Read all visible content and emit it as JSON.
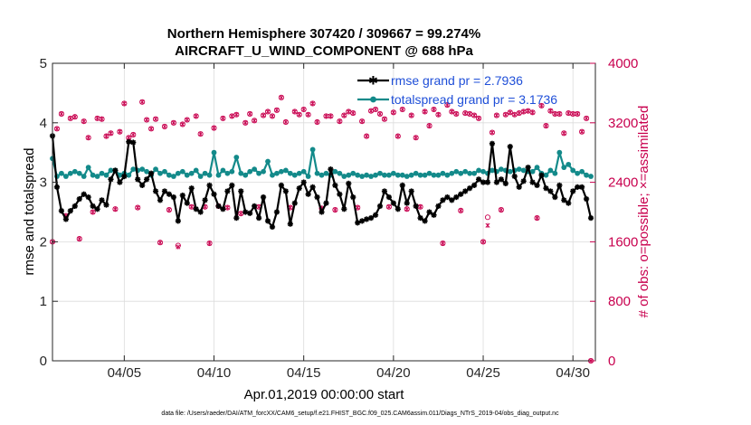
{
  "chart_data": {
    "type": "line",
    "title": "Northern Hemisphere 307420 / 309667 = 99.274%",
    "subtitle": "AIRCRAFT_U_WIND_COMPONENT @ 688 hPa",
    "xlabel": "Apr.01,2019 00:00:00 start",
    "ylabel": "rmse and totalspread",
    "y2label": "# of obs: o=possible; ×=assimilated",
    "footer": "data file: /Users/raeder/DAI/ATM_forcXX/CAM6_setup/f.e21.FHIST_BGC.f09_025.CAM6assim.011/Diags_NTrS_2019-04/obs_diag_output.nc",
    "xlim": [
      1,
      31.25
    ],
    "ylim": [
      0,
      5
    ],
    "y2lim": [
      0,
      4000
    ],
    "x_ticks": [
      5,
      10,
      15,
      20,
      25,
      30
    ],
    "x_tick_labels": [
      "04/05",
      "04/10",
      "04/15",
      "04/20",
      "04/25",
      "04/30"
    ],
    "y_ticks": [
      "0",
      "1",
      "2",
      "3",
      "4",
      "5"
    ],
    "y2_ticks": [
      "0",
      "800",
      "1600",
      "2400",
      "3200",
      "4000"
    ],
    "legend": [
      "rmse grand pr = 2.7936",
      "totalspread grand pr = 3.1736"
    ],
    "colors": {
      "rmse": "#000000",
      "spread": "#138a8a",
      "obs": "#c8004e",
      "legend_text": "#1f4fd8"
    },
    "x": [
      1.0,
      1.25,
      1.5,
      1.75,
      2.0,
      2.25,
      2.5,
      2.75,
      3.0,
      3.25,
      3.5,
      3.75,
      4.0,
      4.25,
      4.5,
      4.75,
      5.0,
      5.25,
      5.5,
      5.75,
      6.0,
      6.25,
      6.5,
      6.75,
      7.0,
      7.25,
      7.5,
      7.75,
      8.0,
      8.25,
      8.5,
      8.75,
      9.0,
      9.25,
      9.5,
      9.75,
      10.0,
      10.25,
      10.5,
      10.75,
      11.0,
      11.25,
      11.5,
      11.75,
      12.0,
      12.25,
      12.5,
      12.75,
      13.0,
      13.25,
      13.5,
      13.75,
      14.0,
      14.25,
      14.5,
      14.75,
      15.0,
      15.25,
      15.5,
      15.75,
      16.0,
      16.25,
      16.5,
      16.75,
      17.0,
      17.25,
      17.5,
      17.75,
      18.0,
      18.25,
      18.5,
      18.75,
      19.0,
      19.25,
      19.5,
      19.75,
      20.0,
      20.25,
      20.5,
      20.75,
      21.0,
      21.25,
      21.5,
      21.75,
      22.0,
      22.25,
      22.5,
      22.75,
      23.0,
      23.25,
      23.5,
      23.75,
      24.0,
      24.25,
      24.5,
      24.75,
      25.0,
      25.25,
      25.5,
      25.75,
      26.0,
      26.25,
      26.5,
      26.75,
      27.0,
      27.25,
      27.5,
      27.75,
      28.0,
      28.25,
      28.5,
      28.75,
      29.0,
      29.25,
      29.5,
      29.75,
      30.0,
      30.25,
      30.5,
      30.75,
      31.0
    ],
    "series": [
      {
        "name": "rmse",
        "values": [
          3.78,
          2.92,
          2.52,
          2.38,
          2.52,
          2.6,
          2.72,
          2.8,
          2.75,
          2.6,
          2.55,
          2.7,
          2.62,
          3.05,
          3.2,
          3.0,
          3.1,
          3.68,
          3.67,
          3.05,
          2.95,
          3.05,
          3.15,
          2.85,
          2.7,
          2.85,
          2.8,
          2.75,
          2.35,
          2.78,
          2.65,
          2.9,
          2.55,
          2.5,
          2.7,
          2.95,
          2.8,
          2.6,
          2.55,
          2.85,
          2.95,
          2.4,
          2.85,
          2.5,
          2.48,
          2.6,
          2.4,
          2.75,
          2.35,
          2.25,
          2.5,
          2.95,
          2.85,
          2.3,
          2.65,
          2.9,
          3.0,
          2.8,
          2.92,
          2.75,
          2.5,
          2.65,
          3.22,
          2.95,
          2.8,
          2.55,
          2.98,
          2.75,
          2.32,
          2.35,
          2.38,
          2.4,
          2.45,
          2.6,
          2.85,
          2.75,
          2.65,
          2.55,
          2.95,
          2.65,
          2.85,
          2.6,
          2.4,
          2.35,
          2.5,
          2.45,
          2.6,
          2.7,
          2.75,
          2.7,
          2.75,
          2.8,
          2.85,
          2.9,
          2.95,
          3.05,
          3.0,
          3.0,
          3.65,
          3.0,
          3.05,
          2.98,
          3.6,
          3.1,
          2.92,
          3.02,
          3.25,
          3.0,
          2.95,
          3.12,
          2.9,
          2.85,
          2.75,
          2.95,
          2.7,
          2.65,
          2.85,
          2.92,
          2.92,
          2.72,
          2.4
        ]
      },
      {
        "name": "totalspread",
        "values": [
          3.4,
          3.1,
          3.15,
          3.1,
          3.15,
          3.18,
          3.15,
          3.1,
          3.25,
          3.12,
          3.1,
          3.15,
          3.12,
          3.2,
          3.2,
          3.12,
          3.15,
          3.12,
          3.22,
          3.2,
          3.22,
          3.18,
          3.12,
          3.22,
          3.15,
          3.18,
          3.12,
          3.1,
          3.15,
          3.18,
          3.12,
          3.15,
          3.2,
          3.1,
          3.15,
          3.12,
          3.5,
          3.12,
          3.2,
          3.15,
          3.18,
          3.42,
          3.15,
          3.12,
          3.18,
          3.22,
          3.15,
          3.18,
          3.35,
          3.12,
          3.15,
          3.18,
          3.2,
          3.15,
          3.12,
          3.15,
          3.18,
          3.1,
          3.55,
          3.15,
          3.12,
          3.15,
          3.12,
          3.18,
          3.15,
          3.1,
          3.12,
          3.15,
          3.12,
          3.1,
          3.12,
          3.1,
          3.12,
          3.15,
          3.12,
          3.12,
          3.15,
          3.12,
          3.12,
          3.1,
          3.12,
          3.15,
          3.12,
          3.12,
          3.15,
          3.12,
          3.12,
          3.15,
          3.12,
          3.15,
          3.18,
          3.15,
          3.18,
          3.15,
          3.15,
          3.2,
          3.18,
          3.15,
          3.2,
          3.18,
          3.22,
          3.2,
          3.18,
          3.2,
          3.22,
          3.2,
          3.18,
          3.18,
          3.25,
          3.15,
          3.12,
          3.2,
          3.15,
          3.5,
          3.25,
          3.3,
          3.2,
          3.15,
          3.18,
          3.12,
          3.1
        ]
      },
      {
        "name": "obs_possible",
        "values": [
          1600,
          3120,
          3320,
          1950,
          3260,
          3280,
          1640,
          3220,
          3000,
          2000,
          3260,
          3250,
          3020,
          3060,
          2040,
          3080,
          3460,
          3000,
          3040,
          2060,
          3480,
          3240,
          3120,
          3250,
          1590,
          3150,
          2030,
          3200,
          1550,
          3180,
          3240,
          2070,
          3290,
          3050,
          2070,
          1580,
          3130,
          2080,
          3260,
          2060,
          3290,
          3310,
          1980,
          3200,
          3320,
          3230,
          2070,
          3300,
          3350,
          3290,
          3370,
          3540,
          3210,
          2060,
          3350,
          3310,
          3380,
          3310,
          3460,
          3210,
          2050,
          3290,
          3290,
          2030,
          3220,
          3300,
          3350,
          3330,
          2060,
          3220,
          3020,
          3360,
          3380,
          3320,
          3250,
          2070,
          3340,
          3020,
          3380,
          2040,
          3300,
          3000,
          2070,
          3350,
          3160,
          3380,
          3310,
          1580,
          3440,
          3350,
          3320,
          2020,
          3330,
          3320,
          3300,
          3260,
          1600,
          1930,
          3070,
          3300,
          2030,
          3310,
          3340,
          3310,
          3330,
          3350,
          3360,
          3340,
          1920,
          3430,
          3160,
          3360,
          3320,
          3320,
          3060,
          3330,
          3320,
          3320,
          3080,
          3260,
          0
        ]
      },
      {
        "name": "obs_assimilated",
        "values": [
          1600,
          3120,
          3320,
          1950,
          3260,
          3280,
          1640,
          3220,
          3000,
          2000,
          3260,
          3250,
          3020,
          3060,
          2040,
          3080,
          3460,
          3000,
          3040,
          2060,
          3480,
          3240,
          3120,
          3250,
          1590,
          3150,
          2030,
          3200,
          1530,
          3180,
          3240,
          2070,
          3290,
          3050,
          2070,
          1580,
          3130,
          2080,
          3260,
          2060,
          3290,
          3310,
          1980,
          3200,
          3320,
          3230,
          2070,
          3300,
          3350,
          3290,
          3370,
          3540,
          3210,
          2060,
          3350,
          3310,
          3380,
          3310,
          3460,
          3210,
          2050,
          3290,
          3290,
          2030,
          3220,
          3300,
          3350,
          3330,
          2060,
          3220,
          3020,
          3360,
          3380,
          3320,
          3250,
          2070,
          3340,
          3020,
          3380,
          2040,
          3300,
          3000,
          2070,
          3350,
          3160,
          3380,
          3310,
          1580,
          3440,
          3350,
          3320,
          2020,
          3330,
          3320,
          3300,
          3260,
          1600,
          1820,
          3070,
          3300,
          2030,
          3310,
          3340,
          3310,
          3330,
          3350,
          3360,
          3340,
          1920,
          3430,
          3160,
          3360,
          3320,
          3320,
          3060,
          3330,
          3320,
          3320,
          3080,
          3260,
          0
        ]
      }
    ]
  }
}
